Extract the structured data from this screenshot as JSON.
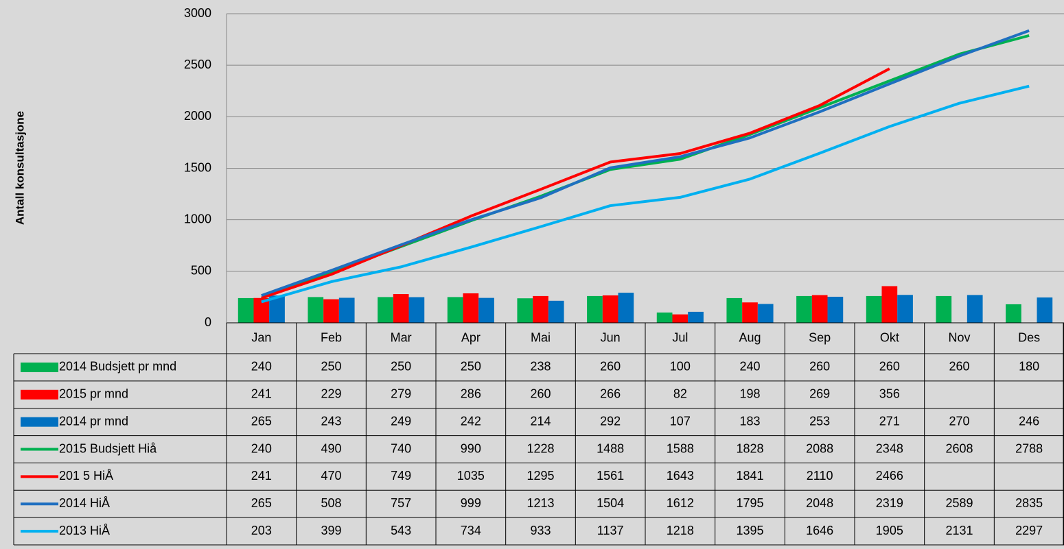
{
  "chart_data": {
    "type": "combo",
    "y_label": "Antall konsultasjone",
    "categories": [
      "Jan",
      "Feb",
      "Mar",
      "Apr",
      "Mai",
      "Jun",
      "Jul",
      "Aug",
      "Sep",
      "Okt",
      "Nov",
      "Des"
    ],
    "ylim": [
      0,
      3000
    ],
    "yticks": [
      0,
      500,
      1000,
      1500,
      2000,
      2500,
      3000
    ],
    "grid": true,
    "series": [
      {
        "name": "2014 Budsjett pr mnd",
        "type": "bar",
        "color": "#00b050",
        "values": [
          240,
          250,
          250,
          250,
          238,
          260,
          100,
          240,
          260,
          260,
          260,
          180
        ]
      },
      {
        "name": "2015 pr mnd",
        "type": "bar",
        "color": "#ff0000",
        "values": [
          241,
          229,
          279,
          286,
          260,
          266,
          82,
          198,
          269,
          356,
          null,
          null
        ]
      },
      {
        "name": "2014 pr mnd",
        "type": "bar",
        "color": "#0070c0",
        "values": [
          265,
          243,
          249,
          242,
          214,
          292,
          107,
          183,
          253,
          271,
          270,
          246
        ]
      },
      {
        "name": "2015 Budsjett Hiå",
        "type": "line",
        "color": "#00b050",
        "values": [
          240,
          490,
          740,
          990,
          1228,
          1488,
          1588,
          1828,
          2088,
          2348,
          2608,
          2788
        ]
      },
      {
        "name": "201 5 HiÅ",
        "type": "line",
        "color": "#ff0000",
        "values": [
          241,
          470,
          749,
          1035,
          1295,
          1561,
          1643,
          1841,
          2110,
          2466,
          null,
          null
        ]
      },
      {
        "name": "2014 HiÅ",
        "type": "line",
        "color": "#1f6fc0",
        "values": [
          265,
          508,
          757,
          999,
          1213,
          1504,
          1612,
          1795,
          2048,
          2319,
          2589,
          2835
        ]
      },
      {
        "name": "2013 HiÅ",
        "type": "line",
        "color": "#00b0f0",
        "values": [
          203,
          399,
          543,
          734,
          933,
          1137,
          1218,
          1395,
          1646,
          1905,
          2131,
          2297
        ]
      }
    ]
  }
}
